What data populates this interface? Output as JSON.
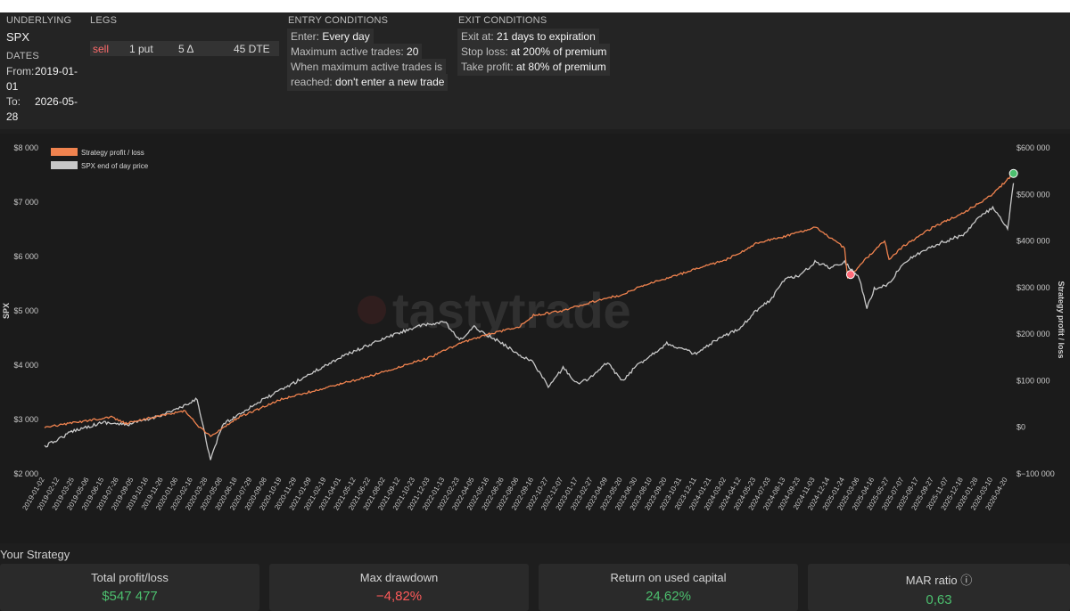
{
  "params": {
    "underlying": {
      "header": "UNDERLYING",
      "value": "SPX"
    },
    "dates": {
      "header": "DATES",
      "from_label": "From:",
      "from_line1": "2019-01-",
      "from_line2": "01",
      "to_label": "To:",
      "to_line1": "2026-05-",
      "to_line2": "28"
    },
    "legs": {
      "header": "LEGS",
      "side": "sell",
      "qty_type": "1 put",
      "delta": "5 Δ",
      "dte": "45 DTE"
    },
    "entry": {
      "header": "ENTRY CONDITIONS",
      "l1_label": "Enter:",
      "l1_value": "Every day",
      "l2_label": "Maximum active trades:",
      "l2_value": "20",
      "l3_label": "When maximum active trades is",
      "l4_label": "reached:",
      "l4_value": "don't enter a new trade"
    },
    "exit": {
      "header": "EXIT CONDITIONS",
      "l1_label": "Exit at:",
      "l1_value": "21 days to expiration",
      "l2_label": "Stop loss:",
      "l2_value": "at 200% of premium",
      "l3_label": "Take profit:",
      "l3_value": "at 80% of premium"
    }
  },
  "chart_data": {
    "type": "line",
    "left_axis_label": "SPX",
    "right_axis_label": "Strategy profit / loss",
    "left_ticks": [
      "$2 000",
      "$3 000",
      "$4 000",
      "$5 000",
      "$6 000",
      "$7 000",
      "$8 000"
    ],
    "left_values": [
      2000,
      3000,
      4000,
      5000,
      6000,
      7000,
      8000
    ],
    "right_ticks": [
      "$−100 000",
      "$0",
      "$100 000",
      "$200 000",
      "$300 000",
      "$400 000",
      "$500 000",
      "$600 000"
    ],
    "right_values": [
      -100000,
      0,
      100000,
      200000,
      300000,
      400000,
      500000,
      600000
    ],
    "ylim_left": [
      2000,
      8000
    ],
    "ylim_right": [
      -100000,
      600000
    ],
    "x_ticks": [
      "2019-01-02",
      "2019-02-12",
      "2019-03-25",
      "2019-05-06",
      "2019-06-15",
      "2019-07-26",
      "2019-09-05",
      "2019-10-16",
      "2019-11-26",
      "2020-01-06",
      "2020-02-16",
      "2020-03-28",
      "2020-05-08",
      "2020-06-18",
      "2020-07-29",
      "2020-09-08",
      "2020-10-19",
      "2020-11-29",
      "2021-01-09",
      "2021-02-19",
      "2021-04-01",
      "2021-05-12",
      "2021-06-22",
      "2021-08-02",
      "2021-09-12",
      "2021-10-23",
      "2021-12-03",
      "2022-01-13",
      "2022-02-23",
      "2022-04-05",
      "2022-05-16",
      "2022-06-26",
      "2022-08-06",
      "2022-09-16",
      "2022-10-27",
      "2022-12-07",
      "2023-01-17",
      "2023-02-27",
      "2023-04-09",
      "2023-05-20",
      "2023-06-30",
      "2023-08-10",
      "2023-09-20",
      "2023-10-31",
      "2023-12-11",
      "2024-01-21",
      "2024-03-02",
      "2024-04-12",
      "2024-05-23",
      "2024-07-03",
      "2024-08-13",
      "2024-09-23",
      "2024-11-03",
      "2024-12-14",
      "2025-01-24",
      "2025-03-06",
      "2025-04-16",
      "2025-05-27",
      "2025-07-07",
      "2025-08-17",
      "2025-09-27",
      "2025-11-07",
      "2025-12-18",
      "2026-01-28",
      "2026-03-10",
      "2026-04-20"
    ],
    "legend": [
      {
        "name": "Strategy profit / loss",
        "color": "#f0834f"
      },
      {
        "name": "SPX end of day price",
        "color": "#c8c8c8"
      }
    ],
    "series": [
      {
        "name": "Strategy profit / loss",
        "axis": "right",
        "color": "#f0834f",
        "x": [
          0,
          2.5,
          4.5,
          5.5,
          7,
          9.5,
          10.3,
          11.2,
          13,
          16,
          19,
          22,
          24,
          26,
          28,
          30,
          32,
          33,
          35,
          37,
          39,
          40,
          42,
          44,
          46,
          47,
          48,
          50,
          52,
          54,
          54.2,
          56,
          56.7,
          57,
          58,
          60,
          62,
          63,
          64,
          65.4
        ],
        "values": [
          0,
          12000,
          22000,
          8000,
          20000,
          35000,
          5000,
          -20000,
          20000,
          60000,
          85000,
          110000,
          130000,
          150000,
          180000,
          200000,
          215000,
          240000,
          250000,
          270000,
          285000,
          300000,
          320000,
          340000,
          360000,
          375000,
          395000,
          410000,
          430000,
          385000,
          320000,
          380000,
          400000,
          360000,
          390000,
          430000,
          460000,
          480000,
          500000,
          545000
        ]
      },
      {
        "name": "SPX end of day price",
        "axis": "left",
        "color": "#c8c8c8",
        "x": [
          0,
          2,
          4,
          5.5,
          7,
          9.5,
          10.3,
          11.2,
          12,
          14,
          17,
          20,
          23,
          25,
          27,
          28,
          29,
          31,
          32,
          33,
          34,
          35,
          36,
          37,
          38,
          39,
          40,
          42,
          43,
          44,
          45,
          47,
          48,
          49,
          50,
          51,
          52,
          53,
          54,
          55,
          55.5,
          56,
          57,
          58,
          60,
          62,
          63,
          64,
          65,
          65.4
        ],
        "values": [
          2500,
          2800,
          2950,
          2900,
          3000,
          3250,
          3380,
          2250,
          2900,
          3250,
          3700,
          4150,
          4500,
          4700,
          4800,
          4450,
          4700,
          4380,
          4200,
          4050,
          3600,
          3950,
          3650,
          3800,
          4050,
          3700,
          4000,
          4400,
          4300,
          4200,
          4400,
          4700,
          5000,
          5200,
          5600,
          5650,
          5900,
          5800,
          5900,
          5600,
          5050,
          5400,
          5500,
          5900,
          6200,
          6400,
          6700,
          6900,
          6500,
          7350
        ]
      }
    ],
    "markers": [
      {
        "series": "Strategy profit / loss",
        "x": 65.4,
        "value": 545000,
        "color": "#4cbf6e"
      },
      {
        "series": "Strategy profit / loss",
        "x": 54.4,
        "value": 328000,
        "color": "#ff6b78"
      }
    ]
  },
  "summary": {
    "title": "Your Strategy",
    "cards": [
      {
        "label": "Total profit/loss",
        "value": "$547 477",
        "tone": "pos"
      },
      {
        "label": "Max drawdown",
        "value": "−4,82%",
        "tone": "neg"
      },
      {
        "label": "Return on used capital",
        "value": "24,62%",
        "tone": "pos"
      },
      {
        "label": "MAR ratio ⓘ",
        "value": "0,63",
        "tone": "pos"
      }
    ]
  }
}
